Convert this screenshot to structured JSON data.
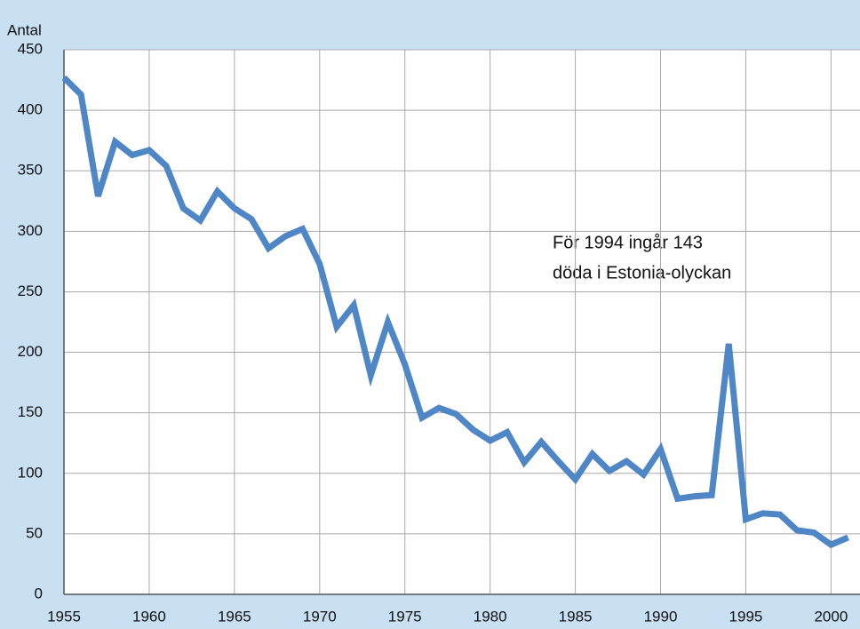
{
  "chart_data": {
    "type": "line",
    "y_label": "Antal",
    "annotation": [
      "För 1994 ingår 143",
      "döda i Estonia-olyckan"
    ],
    "x": [
      1955,
      1956,
      1957,
      1958,
      1959,
      1960,
      1961,
      1962,
      1963,
      1964,
      1965,
      1966,
      1967,
      1968,
      1969,
      1970,
      1971,
      1972,
      1973,
      1974,
      1975,
      1976,
      1977,
      1978,
      1979,
      1980,
      1981,
      1982,
      1983,
      1984,
      1985,
      1986,
      1987,
      1988,
      1989,
      1990,
      1991,
      1992,
      1993,
      1994,
      1995,
      1996,
      1997,
      1998,
      1999,
      2000,
      2001
    ],
    "series": [
      {
        "color": "#4f86c6",
        "values": [
          427,
          413,
          329,
          374,
          363,
          367,
          354,
          319,
          309,
          333,
          319,
          310,
          286,
          296,
          302,
          273,
          221,
          239,
          181,
          225,
          190,
          146,
          154,
          149,
          136,
          127,
          134,
          109,
          126,
          110,
          95,
          116,
          102,
          110,
          99,
          120,
          79,
          81,
          82,
          207,
          62,
          67,
          66,
          53,
          51,
          41,
          47
        ]
      }
    ],
    "xlim": [
      1955,
      2001.7
    ],
    "xticks": [
      1955,
      1960,
      1965,
      1970,
      1975,
      1980,
      1985,
      1990,
      1995,
      2000
    ],
    "ylim": [
      0,
      450
    ],
    "yticks": [
      0,
      50,
      100,
      150,
      200,
      250,
      300,
      350,
      400,
      450
    ],
    "grid": true
  }
}
